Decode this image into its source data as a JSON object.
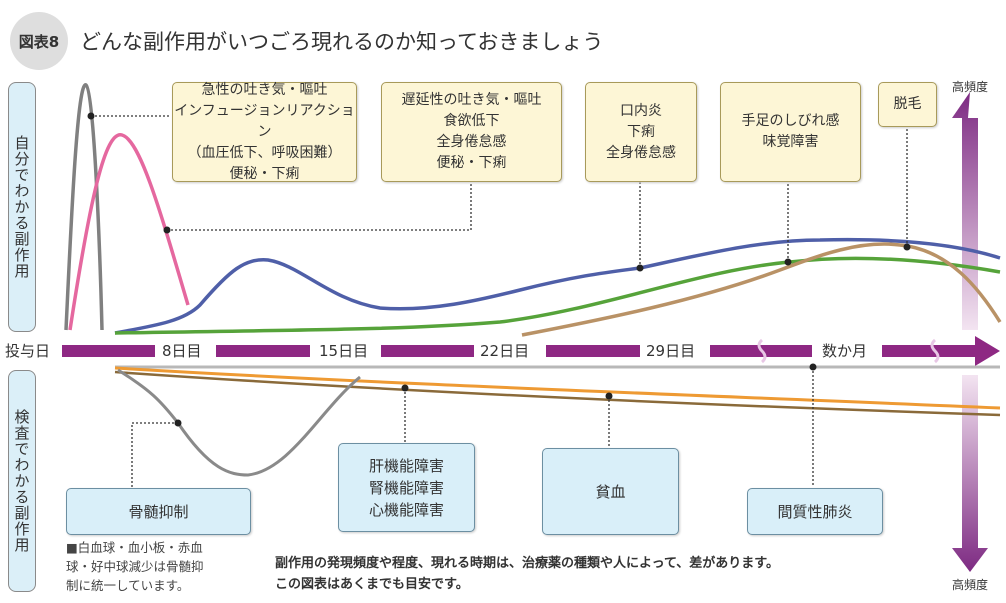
{
  "header": {
    "badge": "図表8",
    "title": "どんな副作用がいつごろ現れるのか知っておきましょう"
  },
  "side_labels": {
    "top": "自分でわかる副作用",
    "bottom": "検査でわかる副作用"
  },
  "timeline": {
    "ticks": [
      "投与日",
      "8日目",
      "15日目",
      "22日目",
      "29日目",
      "数か月"
    ],
    "bar_color": "#8e2883"
  },
  "frequency": {
    "top_label": "高頻度",
    "bottom_label": "高頻度"
  },
  "symptom_boxes": [
    {
      "lines": [
        "急性の吐き気・嘔吐",
        "インフュージョンリアクション",
        "（血圧低下、呼吸困難）",
        "便秘・下痢"
      ]
    },
    {
      "lines": [
        "遅延性の吐き気・嘔吐",
        "食欲低下",
        "全身倦怠感",
        "便秘・下痢"
      ]
    },
    {
      "lines": [
        "口内炎",
        "下痢",
        "全身倦怠感"
      ]
    },
    {
      "lines": [
        "手足のしびれ感",
        "味覚障害"
      ]
    },
    {
      "lines": [
        "脱毛"
      ]
    }
  ],
  "test_boxes": [
    {
      "lines": [
        "骨髄抑制"
      ]
    },
    {
      "lines": [
        "肝機能障害",
        "腎機能障害",
        "心機能障害"
      ]
    },
    {
      "lines": [
        "貧血"
      ]
    },
    {
      "lines": [
        "間質性肺炎"
      ]
    }
  ],
  "footnote": [
    "■白血球・血小板・赤血",
    "球・好中球減少は骨髄抑",
    "制に統一しています。"
  ],
  "note": [
    "副作用の発現頻度や程度、現れる時期は、治療薬の種類や人によって、差があります。",
    "この図表はあくまでも目安です。"
  ],
  "colors": {
    "acute_nausea": "#808080",
    "infusion": "#e5689f",
    "blue_curve": "#4f5fa8",
    "green_curve": "#56a33a",
    "tan_curve": "#b99266",
    "orange_curve": "#ee9a33",
    "brown_curve": "#8a6a3a",
    "marrow_curve": "#8a8a8a"
  }
}
